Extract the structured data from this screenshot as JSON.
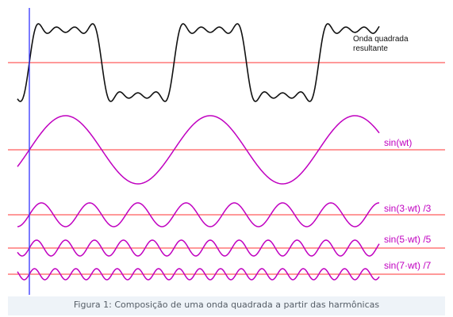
{
  "labels": {
    "result_line1": "Onda quadrada",
    "result_line2": "resultante",
    "h1": "sin(wt)",
    "h3": "sin(3·wt) /3",
    "h5": "sin(5·wt) /5",
    "h7": "sin(7·wt) /7"
  },
  "caption": "Figura 1: Composição de uma onda quadrada a partir das harmônicas",
  "colors": {
    "axis": "#ff3333",
    "harmonic": "#c000c0",
    "result": "#111111",
    "marker": "#3333ff"
  },
  "harmonics": [
    1,
    3,
    5,
    7
  ],
  "cycles_shown": 2.5
}
